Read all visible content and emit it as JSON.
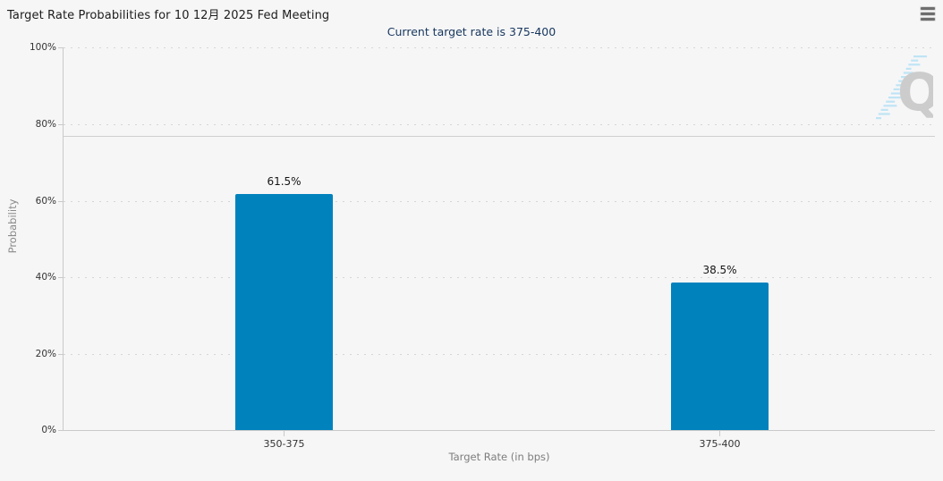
{
  "header": {
    "title": "Target Rate Probabilities for 10 12月 2025 Fed Meeting",
    "subtitle": "Current target rate is 375-400",
    "menu_icon": "hamburger-menu-icon"
  },
  "chart_data": {
    "type": "bar",
    "title": "Target Rate Probabilities for 10 12月 2025 Fed Meeting",
    "subtitle": "Current target rate is 375-400",
    "categories": [
      "350-375",
      "375-400"
    ],
    "values": [
      61.5,
      38.5
    ],
    "value_labels": [
      "61.5%",
      "38.5%"
    ],
    "xlabel": "Target Rate (in bps)",
    "ylabel": "Probability",
    "ylim": [
      0,
      100
    ],
    "yticks": [
      "100%",
      "80%",
      "60%",
      "40%",
      "20%",
      "0%"
    ],
    "grid": "horizontal-dotted",
    "legend": "none",
    "bar_color": "#0082bd",
    "reference_line_percent": 77
  },
  "watermark": {
    "letter": "Q"
  },
  "colors": {
    "background": "#f6f6f7",
    "bar": "#0082bd",
    "subtitle_text": "#17365d",
    "axis_line": "#c9c9c9",
    "gridline": "#d6d6d6",
    "muted_label": "#7d7d7d",
    "watermark_q": "#cccccc",
    "watermark_dashes": "#bfe4f5"
  }
}
